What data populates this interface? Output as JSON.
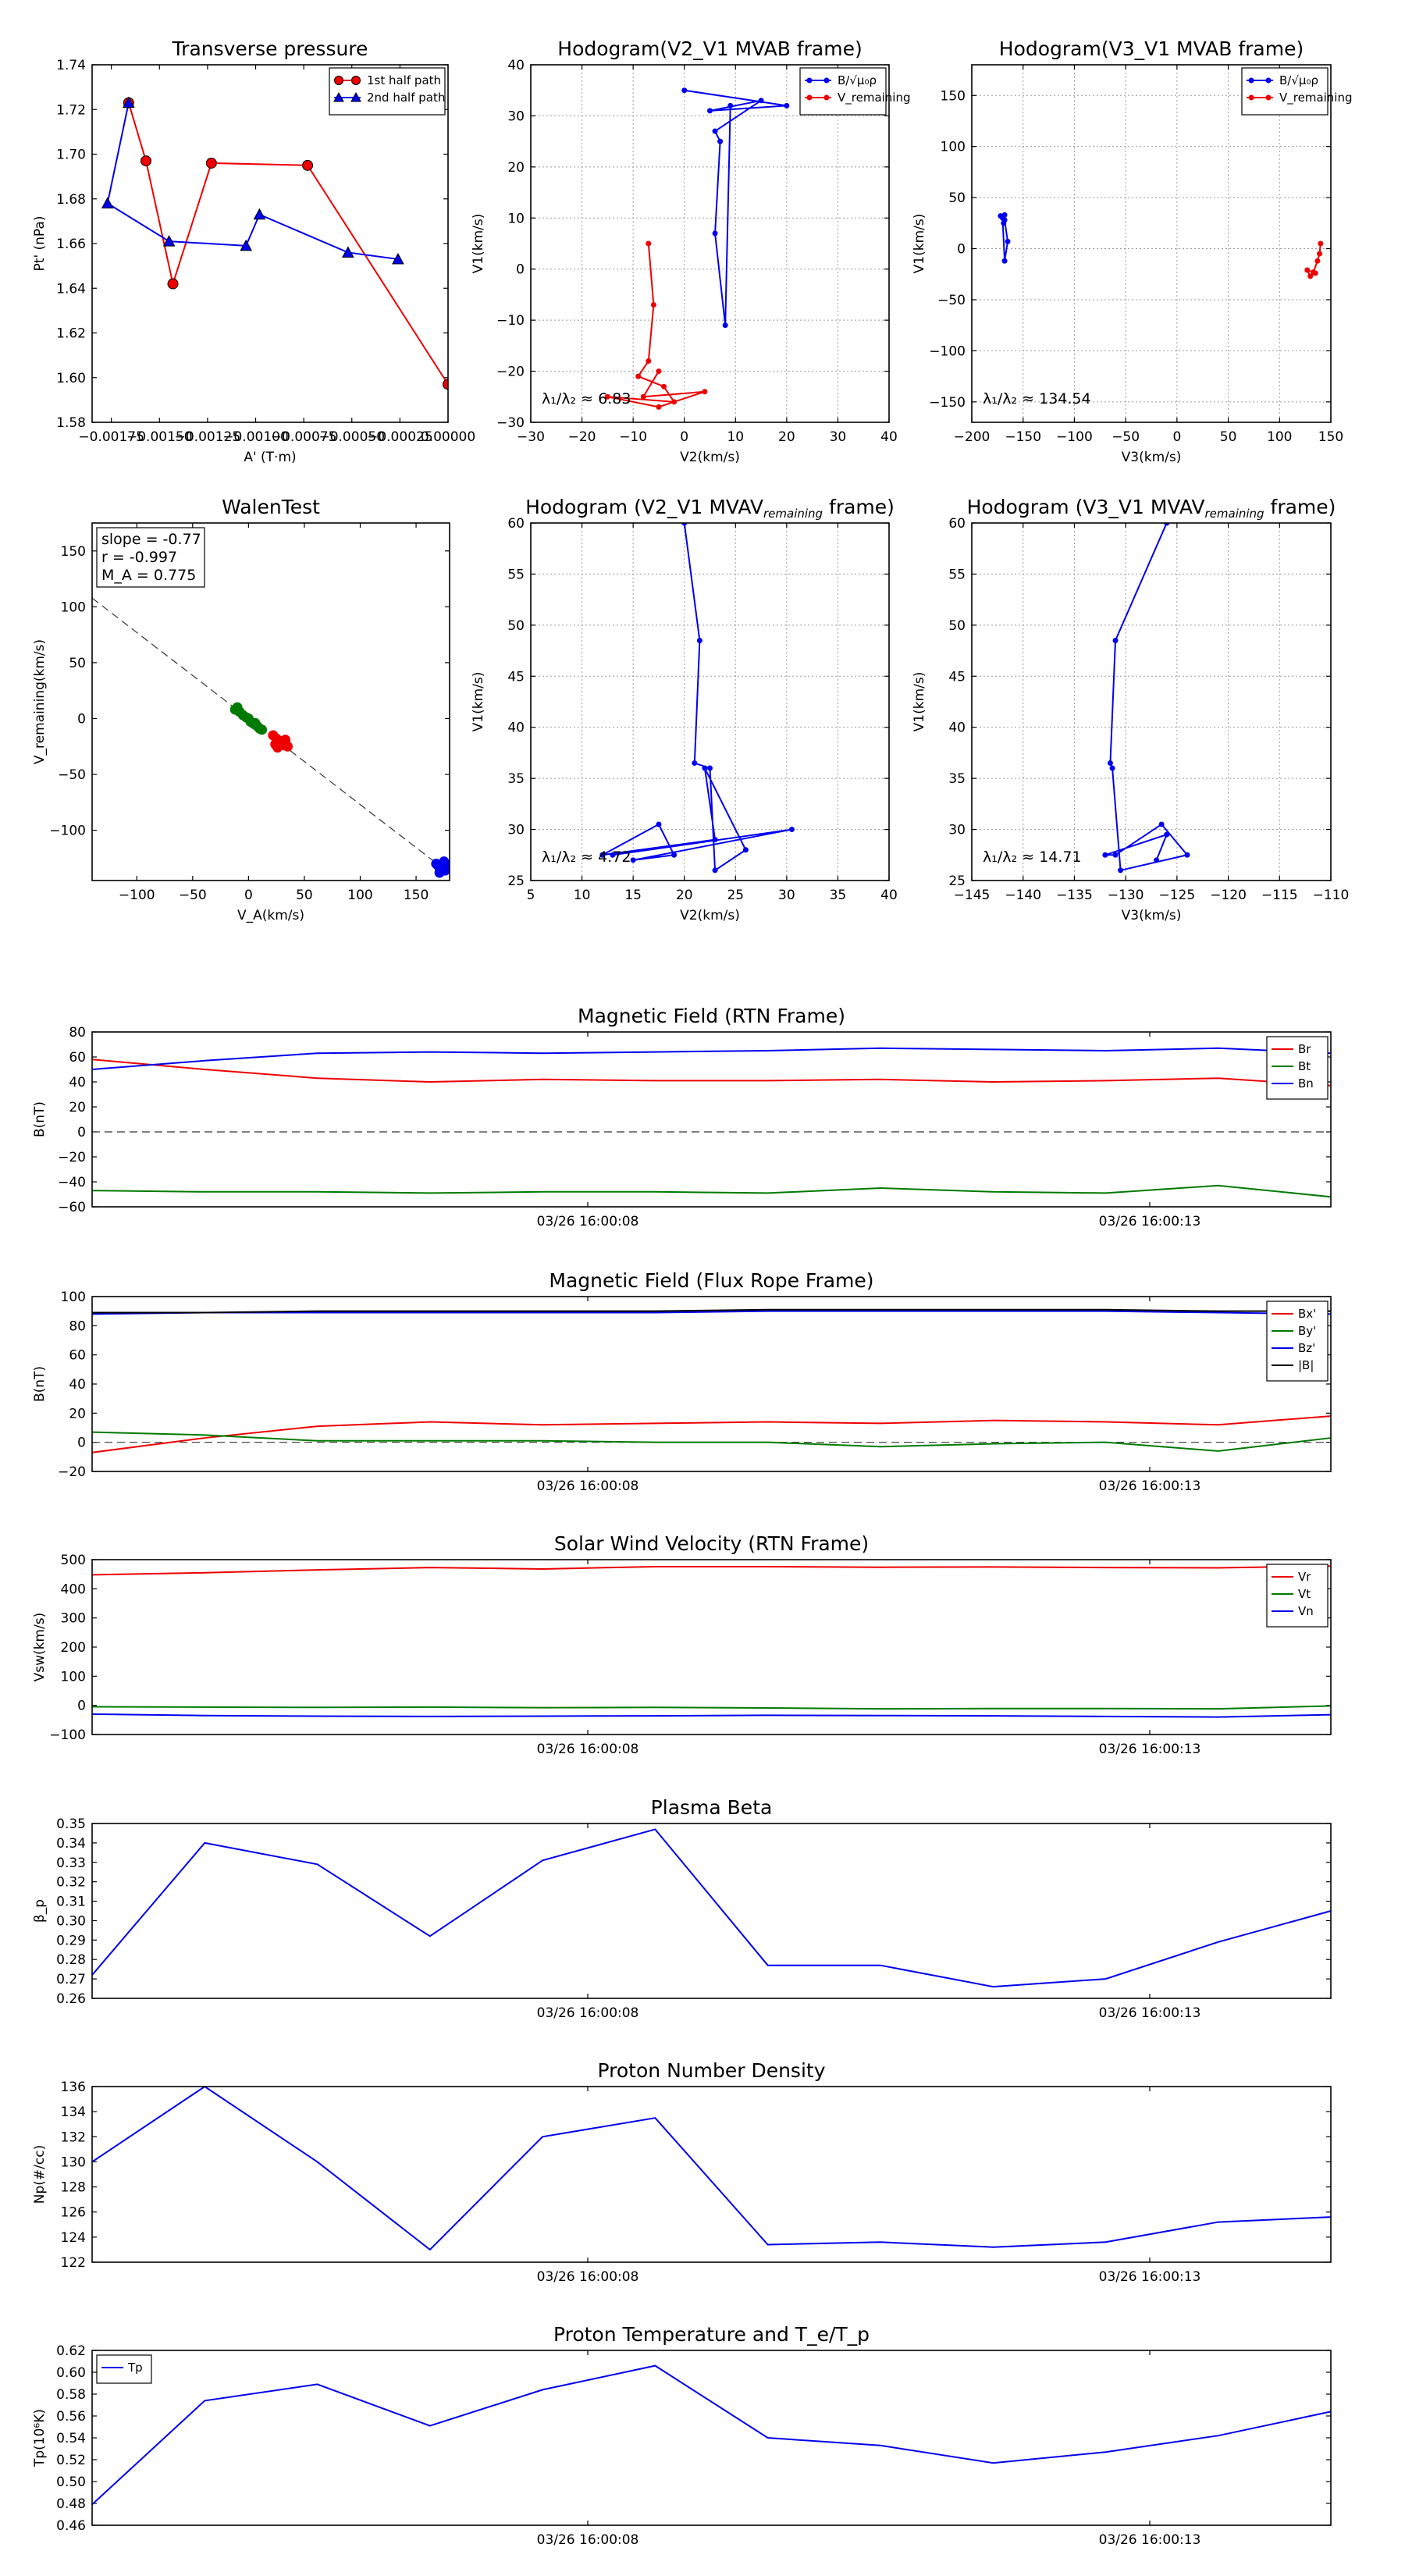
{
  "colors": {
    "red": "#ee0000",
    "blue": "#0000ee",
    "green": "#007a00",
    "black": "#000000"
  },
  "chart_data": [
    {
      "id": "tp",
      "type": "scatter",
      "title": "Transverse pressure",
      "xlabel": "A' (T·m)",
      "ylabel": "Pt' (nPa)",
      "xlim": [
        -0.00185,
        0.0
      ],
      "ylim": [
        1.58,
        1.74
      ],
      "xticks": [
        -0.00175,
        -0.0015,
        -0.00125,
        -0.001,
        -0.00075,
        -0.0005,
        -0.00025,
        0.0
      ],
      "xtick_labels": [
        "−0.00175",
        "−0.00150",
        "−0.00125",
        "−0.00100",
        "−0.00075",
        "−0.00050",
        "−0.00025",
        "0.00000"
      ],
      "yticks": [
        1.58,
        1.6,
        1.62,
        1.64,
        1.66,
        1.68,
        1.7,
        1.72,
        1.74
      ],
      "ytick_labels": [
        "1.58",
        "1.60",
        "1.62",
        "1.64",
        "1.66",
        "1.68",
        "1.70",
        "1.72",
        "1.74"
      ],
      "legend": "top-right",
      "series": [
        {
          "name": "1st half path",
          "color": "red",
          "marker": "circle",
          "x": [
            -0.00166,
            -0.00157,
            -0.00143,
            -0.00123,
            -0.00073,
            0.0
          ],
          "y": [
            1.723,
            1.697,
            1.642,
            1.696,
            1.695,
            1.597
          ]
        },
        {
          "name": "2nd half path",
          "color": "blue",
          "marker": "triangle",
          "x": [
            -0.00166,
            -0.00177,
            -0.00145,
            -0.00105,
            -0.00098,
            -0.00052,
            -0.00026
          ],
          "y": [
            1.723,
            1.678,
            1.661,
            1.659,
            1.673,
            1.656,
            1.653
          ]
        }
      ]
    },
    {
      "id": "h1",
      "type": "line",
      "title": "Hodogram(V2_V1 MVAB frame)",
      "xlabel": "V2(km/s)",
      "ylabel": "V1(km/s)",
      "xlim": [
        -30,
        40
      ],
      "ylim": [
        -30,
        40
      ],
      "xticks": [
        -30,
        -20,
        -10,
        0,
        10,
        20,
        30,
        40
      ],
      "xtick_labels": [
        "−30",
        "−20",
        "−10",
        "0",
        "10",
        "20",
        "30",
        "40"
      ],
      "yticks": [
        -30,
        -20,
        -10,
        0,
        10,
        20,
        30,
        40
      ],
      "ytick_labels": [
        "−30",
        "−20",
        "−10",
        "0",
        "10",
        "20",
        "30",
        "40"
      ],
      "grid": true,
      "legend": "top-right",
      "annotation": "λ₁/λ₂ ≈ 6.83",
      "series": [
        {
          "name": "B/√μ₀ρ",
          "color": "blue",
          "x": [
            0,
            20,
            5,
            15,
            6,
            7,
            6,
            8,
            9
          ],
          "y": [
            35,
            32,
            31,
            33,
            27,
            25,
            7,
            -11,
            32
          ]
        },
        {
          "name": "V_remaining",
          "color": "red",
          "x": [
            -7,
            -6,
            -7,
            -9,
            -4,
            -2,
            -15,
            -5,
            4,
            -8,
            -5
          ],
          "y": [
            5,
            -7,
            -18,
            -21,
            -23,
            -26,
            -25,
            -27,
            -24,
            -25,
            -20
          ]
        }
      ]
    },
    {
      "id": "h2",
      "type": "line",
      "title": "Hodogram(V3_V1 MVAB frame)",
      "xlabel": "V3(km/s)",
      "ylabel": "V1(km/s)",
      "xlim": [
        -200,
        150
      ],
      "ylim": [
        -170,
        180
      ],
      "xticks": [
        -200,
        -150,
        -100,
        -50,
        0,
        50,
        100,
        150
      ],
      "xtick_labels": [
        "−200",
        "−150",
        "−100",
        "−50",
        "0",
        "50",
        "100",
        "150"
      ],
      "yticks": [
        -150,
        -100,
        -50,
        0,
        50,
        100,
        150
      ],
      "ytick_labels": [
        "−150",
        "−100",
        "−50",
        "0",
        "50",
        "100",
        "150"
      ],
      "grid": true,
      "legend": "top-right",
      "annotation": "λ₁/λ₂ ≈ 134.54",
      "series": [
        {
          "name": "B/√μ₀ρ",
          "color": "blue",
          "x": [
            -172,
            -168,
            -169,
            -168,
            -165,
            -168,
            -170
          ],
          "y": [
            32,
            33,
            25,
            28,
            7,
            -12,
            30
          ]
        },
        {
          "name": "V_remaining",
          "color": "red",
          "x": [
            140,
            139,
            137,
            133,
            127,
            130,
            135
          ],
          "y": [
            5,
            -5,
            -12,
            -23,
            -21,
            -27,
            -24
          ]
        }
      ]
    },
    {
      "id": "walen",
      "type": "scatter",
      "title": "WalenTest",
      "xlabel": "V_A(km/s)",
      "ylabel": "V_remaining(km/s)",
      "xlim": [
        -140,
        180
      ],
      "ylim": [
        -145,
        175
      ],
      "xticks": [
        -100,
        -50,
        0,
        50,
        100,
        150
      ],
      "xtick_labels": [
        "−100",
        "−50",
        "0",
        "50",
        "100",
        "150"
      ],
      "yticks": [
        -100,
        -50,
        0,
        50,
        100,
        150
      ],
      "ytick_labels": [
        "−100",
        "−50",
        "0",
        "50",
        "100",
        "150"
      ],
      "stats": {
        "line1": "slope = -0.77",
        "line2": "r = -0.997",
        "line3": "M_A = 0.775"
      },
      "fit": {
        "slope": -0.77,
        "intercept": 0
      },
      "series": [
        {
          "name": "green",
          "color": "green",
          "x": [
            -12,
            -8,
            -5,
            -2,
            2,
            5,
            8,
            12,
            -10,
            0,
            6,
            10
          ],
          "y": [
            8,
            6,
            3,
            1,
            -3,
            -5,
            -7,
            -10,
            10,
            0,
            -4,
            -9
          ]
        },
        {
          "name": "red",
          "color": "red",
          "x": [
            22,
            25,
            28,
            30,
            32,
            35,
            26,
            29,
            33,
            24
          ],
          "y": [
            -15,
            -18,
            -20,
            -22,
            -24,
            -25,
            -26,
            -21,
            -19,
            -23
          ]
        },
        {
          "name": "blue",
          "color": "blue",
          "x": [
            168,
            170,
            172,
            174,
            176,
            178,
            171,
            175
          ],
          "y": [
            -130,
            -132,
            -135,
            -133,
            -136,
            -131,
            -138,
            -128
          ]
        }
      ]
    },
    {
      "id": "h3",
      "type": "line",
      "title": "Hodogram (V2_V1 MVAV",
      "title_sub": "remaining",
      "title_end": " frame)",
      "xlabel": "V2(km/s)",
      "ylabel": "V1(km/s)",
      "xlim": [
        5,
        40
      ],
      "ylim": [
        25,
        60
      ],
      "xticks": [
        5,
        10,
        15,
        20,
        25,
        30,
        35,
        40
      ],
      "xtick_labels": [
        "5",
        "10",
        "15",
        "20",
        "25",
        "30",
        "35",
        "40"
      ],
      "yticks": [
        25,
        30,
        35,
        40,
        45,
        50,
        55,
        60
      ],
      "ytick_labels": [
        "25",
        "30",
        "35",
        "40",
        "45",
        "50",
        "55",
        "60"
      ],
      "grid": true,
      "annotation": "λ₁/λ₂ ≈ 4.72",
      "series": [
        {
          "name": "B",
          "color": "blue",
          "x": [
            20,
            21.5,
            21,
            22.5,
            23,
            26,
            22,
            23,
            12,
            17.5,
            19,
            15,
            30.5,
            13
          ],
          "y": [
            60,
            48.5,
            36.5,
            36,
            26,
            28,
            36,
            29,
            27.5,
            30.5,
            27.5,
            27,
            30,
            27.5
          ]
        }
      ]
    },
    {
      "id": "h4",
      "type": "line",
      "title": "Hodogram (V3_V1 MVAV",
      "title_sub": "remaining",
      "title_end": " frame)",
      "xlabel": "V3(km/s)",
      "ylabel": "V1(km/s)",
      "xlim": [
        -145,
        -110
      ],
      "ylim": [
        25,
        60
      ],
      "xticks": [
        -145,
        -140,
        -135,
        -130,
        -125,
        -120,
        -115,
        -110
      ],
      "xtick_labels": [
        "−145",
        "−140",
        "−135",
        "−130",
        "−125",
        "−120",
        "−115",
        "−110"
      ],
      "yticks": [
        25,
        30,
        35,
        40,
        45,
        50,
        55,
        60
      ],
      "ytick_labels": [
        "25",
        "30",
        "35",
        "40",
        "45",
        "50",
        "55",
        "60"
      ],
      "grid": true,
      "annotation": "λ₁/λ₂ ≈ 14.71",
      "series": [
        {
          "name": "B",
          "color": "blue",
          "x": [
            -126,
            -131,
            -131.5,
            -131.3,
            -130.5,
            -124,
            -126.5,
            -131,
            -132,
            -126,
            -127
          ],
          "y": [
            60,
            48.5,
            36.5,
            36,
            26,
            27.5,
            30.5,
            27.5,
            27.5,
            29.5,
            27
          ]
        }
      ]
    },
    {
      "id": "mag_rtn",
      "type": "line",
      "title": "Magnetic Field (RTN Frame)",
      "ylabel": "B(nT)",
      "ylim": [
        -60,
        80
      ],
      "yticks": [
        -60,
        -40,
        -20,
        0,
        20,
        40,
        60,
        80
      ],
      "ytick_labels": [
        "−60",
        "−40",
        "−20",
        "0",
        "20",
        "40",
        "60",
        "80"
      ],
      "xtick_labels": [
        "03/26 16:00:08",
        "03/26 16:00:13"
      ],
      "zero_line": true,
      "legend": "top-right",
      "series": [
        {
          "name": "Br",
          "color": "red",
          "values": [
            58,
            50,
            43,
            40,
            42,
            41,
            41,
            42,
            40,
            41,
            43,
            37
          ]
        },
        {
          "name": "Bt",
          "color": "green",
          "values": [
            -47,
            -48,
            -48,
            -49,
            -48,
            -48,
            -49,
            -45,
            -48,
            -49,
            -43,
            -52
          ]
        },
        {
          "name": "Bn",
          "color": "blue",
          "values": [
            50,
            57,
            63,
            64,
            63,
            64,
            65,
            67,
            66,
            65,
            67,
            63
          ]
        }
      ]
    },
    {
      "id": "mag_fr",
      "type": "line",
      "title": "Magnetic Field (Flux Rope Frame)",
      "ylabel": "B(nT)",
      "ylim": [
        -20,
        100
      ],
      "yticks": [
        -20,
        0,
        20,
        40,
        60,
        80,
        100
      ],
      "ytick_labels": [
        "−20",
        "0",
        "20",
        "40",
        "60",
        "80",
        "100"
      ],
      "xtick_labels": [
        "03/26 16:00:08",
        "03/26 16:00:13"
      ],
      "zero_line": true,
      "legend": "top-right",
      "series": [
        {
          "name": "Bx'",
          "color": "red",
          "values": [
            -7,
            3,
            11,
            14,
            12,
            13,
            14,
            13,
            15,
            14,
            12,
            18
          ]
        },
        {
          "name": "By'",
          "color": "green",
          "values": [
            7,
            5,
            1,
            1,
            1,
            0,
            0,
            -3,
            -1,
            0,
            -6,
            3
          ]
        },
        {
          "name": "Bz'",
          "color": "blue",
          "values": [
            88,
            89,
            89,
            89,
            89,
            89,
            90,
            90,
            90,
            90,
            89,
            88
          ]
        },
        {
          "name": "|B|",
          "color": "black",
          "values": [
            89,
            89,
            90,
            90,
            90,
            90,
            91,
            91,
            91,
            91,
            90,
            90
          ]
        }
      ]
    },
    {
      "id": "vsw",
      "type": "line",
      "title": "Solar Wind Velocity (RTN Frame)",
      "ylabel": "Vsw(km/s)",
      "ylim": [
        -100,
        500
      ],
      "yticks": [
        -100,
        0,
        100,
        200,
        300,
        400,
        500
      ],
      "ytick_labels": [
        "−100",
        "0",
        "100",
        "200",
        "300",
        "400",
        "500"
      ],
      "xtick_labels": [
        "03/26 16:00:08",
        "03/26 16:00:13"
      ],
      "legend": "top-right",
      "series": [
        {
          "name": "Vr",
          "color": "red",
          "values": [
            448,
            455,
            465,
            473,
            468,
            476,
            476,
            474,
            475,
            473,
            472,
            478
          ]
        },
        {
          "name": "Vt",
          "color": "green",
          "values": [
            -5,
            -6,
            -7,
            -6,
            -8,
            -7,
            -9,
            -12,
            -11,
            -11,
            -12,
            -2
          ]
        },
        {
          "name": "Vn",
          "color": "blue",
          "values": [
            -30,
            -35,
            -37,
            -38,
            -37,
            -36,
            -34,
            -35,
            -36,
            -38,
            -40,
            -32
          ]
        }
      ]
    },
    {
      "id": "beta",
      "type": "line",
      "title": "Plasma Beta",
      "ylabel": "β_p",
      "ylim": [
        0.26,
        0.35
      ],
      "yticks": [
        0.26,
        0.27,
        0.28,
        0.29,
        0.3,
        0.31,
        0.32,
        0.33,
        0.34,
        0.35
      ],
      "ytick_labels": [
        "0.26",
        "0.27",
        "0.28",
        "0.29",
        "0.30",
        "0.31",
        "0.32",
        "0.33",
        "0.34",
        "0.35"
      ],
      "xtick_labels": [
        "03/26 16:00:08",
        "03/26 16:00:13"
      ],
      "series": [
        {
          "name": "beta",
          "color": "blue",
          "values": [
            0.272,
            0.34,
            0.329,
            0.292,
            0.331,
            0.347,
            0.277,
            0.277,
            0.266,
            0.27,
            0.289,
            0.305
          ]
        }
      ]
    },
    {
      "id": "np",
      "type": "line",
      "title": "Proton Number Density",
      "ylabel": "Np(#/cc)",
      "ylim": [
        122,
        136
      ],
      "yticks": [
        122,
        124,
        126,
        128,
        130,
        132,
        134,
        136
      ],
      "ytick_labels": [
        "122",
        "124",
        "126",
        "128",
        "130",
        "132",
        "134",
        "136"
      ],
      "xtick_labels": [
        "03/26 16:00:08",
        "03/26 16:00:13"
      ],
      "series": [
        {
          "name": "Np",
          "color": "blue",
          "values": [
            130,
            136,
            130,
            123,
            132,
            133.5,
            123.4,
            123.6,
            123.2,
            123.6,
            125.2,
            125.6
          ]
        }
      ]
    },
    {
      "id": "tp_temp",
      "type": "line",
      "title": "Proton Temperature and T_e/T_p",
      "ylabel": "Tp(10⁶K)",
      "ylim": [
        0.46,
        0.62
      ],
      "yticks": [
        0.46,
        0.48,
        0.5,
        0.52,
        0.54,
        0.56,
        0.58,
        0.6,
        0.62
      ],
      "ytick_labels": [
        "0.46",
        "0.48",
        "0.50",
        "0.52",
        "0.54",
        "0.56",
        "0.58",
        "0.60",
        "0.62"
      ],
      "xtick_labels": [
        "03/26 16:00:08",
        "03/26 16:00:13"
      ],
      "legend": "top-left",
      "series": [
        {
          "name": "Tp",
          "color": "blue",
          "values": [
            0.479,
            0.574,
            0.589,
            0.551,
            0.584,
            0.606,
            0.54,
            0.533,
            0.517,
            0.527,
            0.542,
            0.564
          ]
        }
      ]
    }
  ]
}
